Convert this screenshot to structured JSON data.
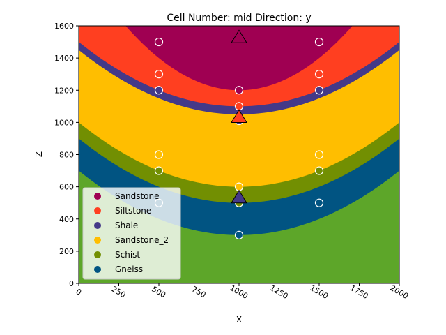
{
  "chart_data": {
    "type": "geologic-section",
    "title": "Cell Number: mid Direction: y",
    "xlabel": "X",
    "ylabel": "Z",
    "xlim": [
      0,
      2000
    ],
    "ylim": [
      0,
      1600
    ],
    "xticks": [
      0,
      250,
      500,
      750,
      1000,
      1250,
      1500,
      1750,
      2000
    ],
    "yticks": [
      0,
      200,
      400,
      600,
      800,
      1000,
      1200,
      1400,
      1600
    ],
    "xtick_rotation": 30,
    "legend_position": "lower-left",
    "basement_color": "#5da629",
    "layers": [
      {
        "name": "Gneiss",
        "color": "#015482",
        "bottom_at_center": 300,
        "bottom_at_500": 400
      },
      {
        "name": "Schist",
        "color": "#728f02",
        "bottom_at_center": 500,
        "bottom_at_500": 600
      },
      {
        "name": "Sandstone_2",
        "color": "#ffbe00",
        "bottom_at_center": 600,
        "bottom_at_500": 700
      },
      {
        "name": "Shale",
        "color": "#443988",
        "bottom_at_center": 1050,
        "bottom_at_500": 1150
      },
      {
        "name": "Siltstone",
        "color": "#ff3f20",
        "bottom_at_center": 1100,
        "bottom_at_500": 1200
      },
      {
        "name": "Sandstone",
        "color": "#9f0052",
        "bottom_at_center": 1200,
        "bottom_at_500": 1400
      }
    ],
    "surface_points": [
      {
        "x": 500,
        "z": 1500,
        "color": "#9f0052"
      },
      {
        "x": 1500,
        "z": 1500,
        "color": "#9f0052"
      },
      {
        "x": 500,
        "z": 1300,
        "color": "#ff3f20"
      },
      {
        "x": 1500,
        "z": 1300,
        "color": "#ff3f20"
      },
      {
        "x": 500,
        "z": 1200,
        "color": "#443988"
      },
      {
        "x": 1500,
        "z": 1200,
        "color": "#443988"
      },
      {
        "x": 1000,
        "z": 1200,
        "color": "#9f0052"
      },
      {
        "x": 1000,
        "z": 1100,
        "color": "#ff3f20"
      },
      {
        "x": 1000,
        "z": 1010,
        "color": "#443988"
      },
      {
        "x": 500,
        "z": 800,
        "color": "#ffbe00"
      },
      {
        "x": 1500,
        "z": 800,
        "color": "#ffbe00"
      },
      {
        "x": 500,
        "z": 700,
        "color": "#728f02"
      },
      {
        "x": 1500,
        "z": 700,
        "color": "#728f02"
      },
      {
        "x": 1000,
        "z": 600,
        "color": "#ffbe00"
      },
      {
        "x": 1000,
        "z": 500,
        "color": "#728f02"
      },
      {
        "x": 500,
        "z": 500,
        "color": "#015482"
      },
      {
        "x": 1500,
        "z": 500,
        "color": "#015482"
      },
      {
        "x": 1000,
        "z": 300,
        "color": "#015482"
      }
    ],
    "orientations": [
      {
        "x": 1000,
        "z": 1525,
        "color": "#9f0052"
      },
      {
        "x": 1000,
        "z": 1030,
        "color": "#ff3f20"
      },
      {
        "x": 1000,
        "z": 530,
        "color": "#443988"
      }
    ],
    "legend": [
      {
        "label": "Sandstone",
        "color": "#9f0052"
      },
      {
        "label": "Siltstone",
        "color": "#ff3f20"
      },
      {
        "label": "Shale",
        "color": "#443988"
      },
      {
        "label": "Sandstone_2",
        "color": "#ffbe00"
      },
      {
        "label": "Schist",
        "color": "#728f02"
      },
      {
        "label": "Gneiss",
        "color": "#015482"
      }
    ]
  }
}
